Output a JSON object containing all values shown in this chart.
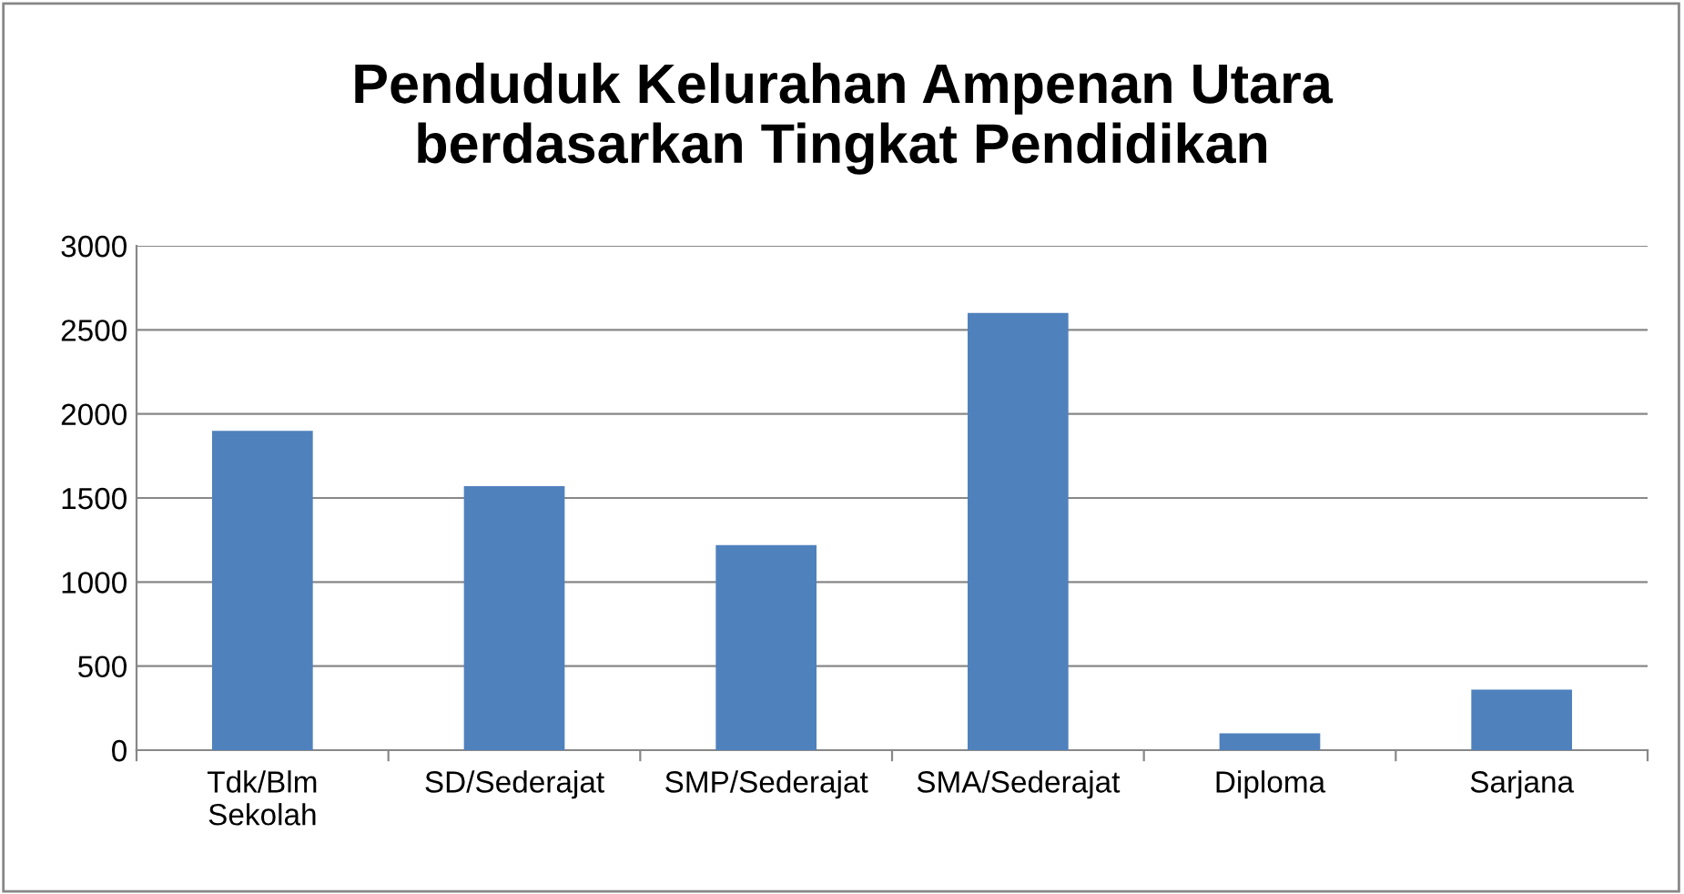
{
  "chart_data": {
    "type": "bar",
    "title": "Penduduk Kelurahan Ampenan Utara\nberdasarkan Tingkat Pendidikan",
    "categories": [
      "Tdk/Blm\nSekolah",
      "SD/Sederajat",
      "SMP/Sederajat",
      "SMA/Sederajat",
      "Diploma",
      "Sarjana"
    ],
    "values": [
      1900,
      1570,
      1220,
      2600,
      100,
      360
    ],
    "color": "#4f81bd",
    "ylim": [
      0,
      3000
    ],
    "yticks": [
      0,
      500,
      1000,
      1500,
      2000,
      2500,
      3000
    ],
    "grid": "y",
    "legend": false
  }
}
